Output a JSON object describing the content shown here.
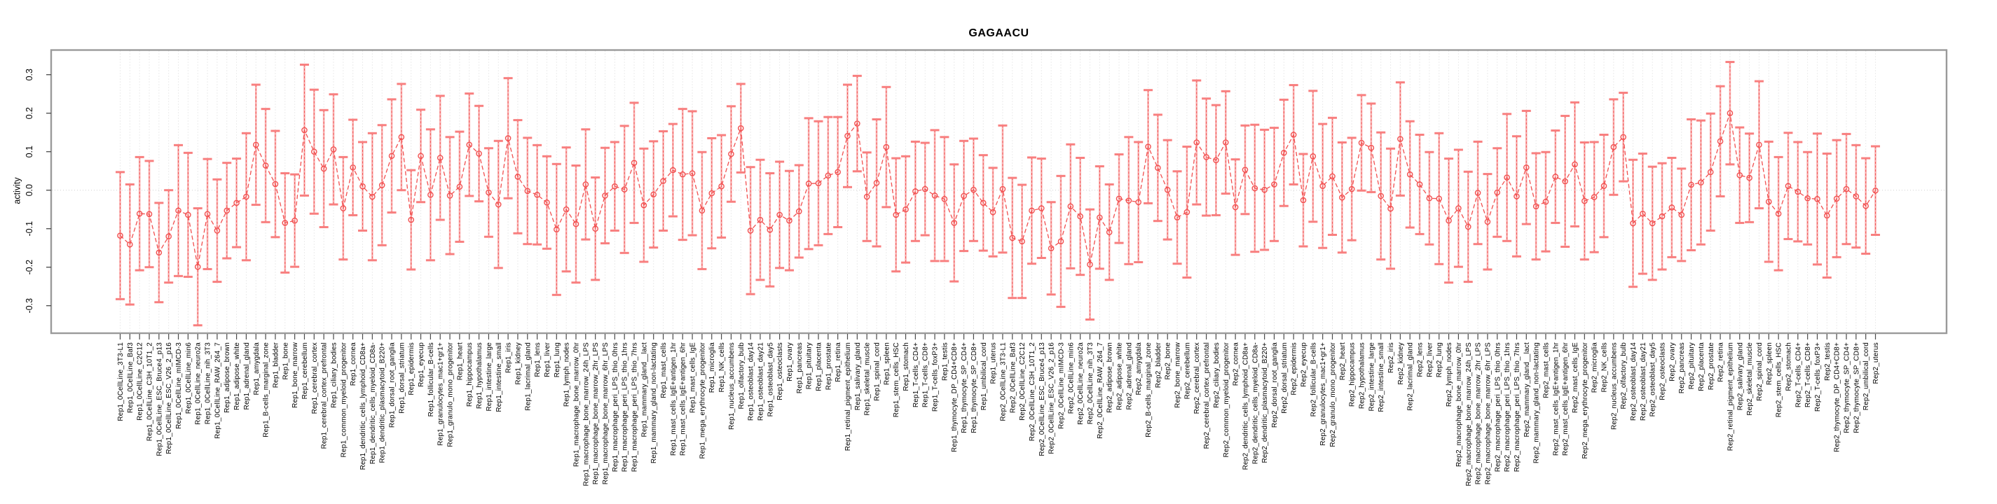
{
  "title": "GAGAACU",
  "y_axis": {
    "label": "activity",
    "tick_labels": [
      "0.3",
      "0.2",
      "0.1",
      "0.0",
      "-0.1",
      "-0.2",
      "-0.3"
    ]
  },
  "colors": {
    "background": "#ffffff",
    "box_border": "#9a9a9a",
    "grid_dotted": "#d8d8d8",
    "zero_line": "#cfcfcf",
    "tick": "#4a4a4a",
    "label_text": "#000000",
    "series_red": "#f25050",
    "error_bar_pink": "#f99a9a",
    "error_cap_pink": "#f87f7f"
  },
  "chart_data": {
    "type": "line",
    "title": "GAGAACU",
    "xlabel": "",
    "ylabel": "activity",
    "ylim": [
      -0.37,
      0.365
    ],
    "y_ticks": [
      0.3,
      0.2,
      0.1,
      0.0,
      -0.1,
      -0.2,
      -0.3
    ],
    "grid": "vertical dotted gridline at every category; dotted horizontal line at y=0",
    "style": "open red circles connected by dashed red line, pink error bars with caps (value ± err)",
    "legend": "none",
    "categories": [
      "Rep1_0CellLine_3T3-L1",
      "Rep1_0CellLine_Baf3",
      "Rep1_0CellLine_C2C12",
      "Rep1_0CellLine_C3H_10T1_2",
      "Rep1_0CellLine_ESC_Bruce4_p13",
      "Rep1_0CellLine_ESC_V26_2_p16",
      "Rep1_0CellLine_mIMCD-3",
      "Rep1_0CellLine_min6",
      "Rep1_0CellLine_neuro2a",
      "Rep1_0CellLine_nih_3T3",
      "Rep1_0CellLine_RAW_264_7",
      "Rep1_adipose_brown",
      "Rep1_adipose_white",
      "Rep1_adrenal_gland",
      "Rep1_amygdala",
      "Rep1_B-cells_marginal_zone",
      "Rep1_bladder",
      "Rep1_bone",
      "Rep1_bone_marrow",
      "Rep1_cerebellum",
      "Rep1_cerebral_cortex",
      "Rep1_cerebral_cortex_prefrontal",
      "Rep1_ciliary_bodies",
      "Rep1_common_myeloid_progenitor",
      "Rep1_cornea",
      "Rep1_dendritic_cells_lymphoid_CD8a+",
      "Rep1_dendritic_cells_myeloid_CD8a-",
      "Rep1_dendritic_plasmacytoid_B220+",
      "Rep1_dorsal_root_ganglia",
      "Rep1_dorsal_striatum",
      "Rep1_epidermis",
      "Rep1_eyecup",
      "Rep1_follicular_B-cells",
      "Rep1_granulocytes_mac1+gr1+",
      "Rep1_granulo_mono_progenitor",
      "Rep1_heart",
      "Rep1_hippocampus",
      "Rep1_hypothalamus",
      "Rep1_intestine_large",
      "Rep1_intestine_small",
      "Rep1_iris",
      "Rep1_kidney",
      "Rep1_lacrimal_gland",
      "Rep1_lens",
      "Rep1_liver",
      "Rep1_lung",
      "Rep1_lymph_nodes",
      "Rep1_macrophage_bone_marrow_0hr",
      "Rep1_macrophage_bone_marrow_24h_LPS",
      "Rep1_macrophage_bone_marrow_2hr_LPS",
      "Rep1_macrophage_bone_marrow_6hr_LPS",
      "Rep1_macrophage_peri_LPS_thio_0hrs",
      "Rep1_macrophage_peri_LPS_thio_1hrs",
      "Rep1_macrophage_peri_LPS_thio_7hrs",
      "Rep1_mammary_gland__lact",
      "Rep1_mammary_gland_non-lactating",
      "Rep1_mast_cells",
      "Rep1_mast_cells_IgE+antigen_1hr",
      "Rep1_mast_cells_IgE+antigen_6hr",
      "Rep1_mast_cells_IgE",
      "Rep1_mega_erythrocyte_progenitor",
      "Rep1_microglia",
      "Rep1_NK_cells",
      "Rep1_nucleus_accumbens",
      "Rep1_olfactory_bulb",
      "Rep1_osteoblast_day14",
      "Rep1_osteoblast_day21",
      "Rep1_osteoblast_day5",
      "Rep1_osteoclasts",
      "Rep1_ovary",
      "Rep1_pancreas",
      "Rep1_pituitary",
      "Rep1_placenta",
      "Rep1_prostate",
      "Rep1_retina",
      "Rep1_retinal_pigment_epithelium",
      "Rep1_salivary_gland",
      "Rep1_skeletal_muscle",
      "Rep1_spinal_cord",
      "Rep1_spleen",
      "Rep1_stem_cells_HSC",
      "Rep1_stomach",
      "Rep1_T-cells_CD4+",
      "Rep1_T-cells_CD8+",
      "Rep1_T-cells_foxP3+",
      "Rep1_testis",
      "Rep1_thymocyte_DP_CD4+CD8+",
      "Rep1_thymocyte_SP_CD4+",
      "Rep1_thymocyte_SP_CD8+",
      "Rep1_umbilical_cord",
      "Rep1_uterus",
      "Rep2_0CellLine_3T3-L1",
      "Rep2_0CellLine_Baf3",
      "Rep2_0CellLine_C2C12",
      "Rep2_0CellLine_C3H_10T1_2",
      "Rep2_0CellLine_ESC_Bruce4_p13",
      "Rep2_0CellLine_ESC_V26_2_p16",
      "Rep2_0CellLine_mIMCD-3",
      "Rep2_0CellLine_min6",
      "Rep2_0CellLine_neuro2a",
      "Rep2_0CellLine_nih_3T3",
      "Rep2_0CellLine_RAW_264_7",
      "Rep2_adipose_brown",
      "Rep2_adipose_white",
      "Rep2_adrenal_gland",
      "Rep2_amygdala",
      "Rep2_B-cells_marginal_zone",
      "Rep2_bladder",
      "Rep2_bone",
      "Rep2_bone_marrow",
      "Rep2_cerebellum",
      "Rep2_cerebral_cortex",
      "Rep2_cerebral_cortex_prefrontal",
      "Rep2_ciliary_bodies",
      "Rep2_common_myeloid_progenitor",
      "Rep2_cornea",
      "Rep2_dendritic_cells_lymphoid_CD8a+",
      "Rep2_dendritic_cells_myeloid_CD8a-",
      "Rep2_dendritic_plasmacytoid_B220+",
      "Rep2_dorsal_root_ganglia",
      "Rep2_dorsal_striatum",
      "Rep2_epidermis",
      "Rep2_eyecup",
      "Rep2_follicular_B-cells",
      "Rep2_granulocytes_mac1+gr1+",
      "Rep2_granulo_mono_progenitor",
      "Rep2_heart",
      "Rep2_hippocampus",
      "Rep2_hypothalamus",
      "Rep2_intestine_large",
      "Rep2_intestine_small",
      "Rep2_iris",
      "Rep2_kidney",
      "Rep2_lacrimal_gland",
      "Rep2_lens",
      "Rep2_liver",
      "Rep2_lung",
      "Rep2_lymph_nodes",
      "Rep2_macrophage_bone_marrow_0hr",
      "Rep2_macrophage_bone_marrow_24h_LPS",
      "Rep2_macrophage_bone_marrow_2hr_LPS",
      "Rep2_macrophage_bone_marrow_6hr_LPS",
      "Rep2_macrophage_peri_LPS_thio_0hrs",
      "Rep2_macrophage_peri_LPS_thio_1hrs",
      "Rep2_macrophage_peri_LPS_thio_7hrs",
      "Rep2_mammary_gland__lact",
      "Rep2_mammary_gland_non-lactating",
      "Rep2_mast_cells",
      "Rep2_mast_cells_IgE+antigen_1hr",
      "Rep2_mast_cells_IgE+antigen_6hr",
      "Rep2_mast_cells_IgE",
      "Rep2_mega_erythrocyte_progenitor",
      "Rep2_microglia",
      "Rep2_NK_cells",
      "Rep2_nucleus_accumbens",
      "Rep2_olfactory_bulb",
      "Rep2_osteoblast_day14",
      "Rep2_osteoblast_day21",
      "Rep2_osteoblast_day5",
      "Rep2_osteoclasts",
      "Rep2_ovary",
      "Rep2_pancreas",
      "Rep2_pituitary",
      "Rep2_placenta",
      "Rep2_prostate",
      "Rep2_retina",
      "Rep2_retinal_pigment_epithelium",
      "Rep2_salivary_gland",
      "Rep2_skeletal_muscle",
      "Rep2_spinal_cord",
      "Rep2_spleen",
      "Rep2_stem_cells_HSC",
      "Rep2_stomach",
      "Rep2_T-cells_CD4+",
      "Rep2_T-cells_CD8+",
      "Rep2_T-cells_foxP3+",
      "Rep2_testis",
      "Rep2_thymocyte_DP_CD4+CD8+",
      "Rep2_thymocyte_SP_CD4+",
      "Rep2_thymocyte_SP_CD8+",
      "Rep2_umbilical_cord",
      "Rep2_uterus"
    ],
    "values": [
      -0.118,
      -0.141,
      -0.061,
      -0.062,
      -0.162,
      -0.12,
      -0.053,
      -0.064,
      -0.199,
      -0.062,
      -0.105,
      -0.053,
      -0.033,
      -0.017,
      0.118,
      0.064,
      0.016,
      -0.085,
      -0.079,
      0.156,
      0.1,
      0.056,
      0.106,
      -0.047,
      0.059,
      0.01,
      -0.017,
      0.013,
      0.089,
      0.138,
      -0.077,
      0.089,
      -0.012,
      0.084,
      -0.014,
      0.009,
      0.118,
      0.095,
      -0.006,
      -0.037,
      0.135,
      0.035,
      -0.002,
      -0.012,
      -0.032,
      -0.102,
      -0.05,
      -0.088,
      0.015,
      -0.1,
      -0.014,
      0.01,
      0.002,
      0.071,
      -0.039,
      -0.011,
      0.024,
      0.052,
      0.041,
      0.044,
      -0.053,
      -0.008,
      0.01,
      0.094,
      0.161,
      -0.105,
      -0.077,
      -0.103,
      -0.064,
      -0.079,
      -0.055,
      0.017,
      0.018,
      0.038,
      0.047,
      0.141,
      0.173,
      -0.017,
      0.019,
      0.112,
      -0.064,
      -0.05,
      -0.003,
      0.003,
      -0.014,
      -0.023,
      -0.085,
      -0.015,
      0.001,
      -0.033,
      -0.057,
      0.003,
      -0.124,
      -0.133,
      -0.053,
      -0.047,
      -0.151,
      -0.133,
      -0.042,
      -0.068,
      -0.193,
      -0.071,
      -0.109,
      -0.022,
      -0.027,
      -0.031,
      0.113,
      0.058,
      0.001,
      -0.071,
      -0.057,
      0.124,
      0.086,
      0.078,
      0.124,
      -0.044,
      0.053,
      0.005,
      0.001,
      0.015,
      0.097,
      0.144,
      -0.026,
      0.088,
      0.011,
      0.036,
      -0.019,
      0.003,
      0.123,
      0.11,
      -0.015,
      -0.048,
      0.133,
      0.041,
      0.015,
      -0.021,
      -0.022,
      -0.079,
      -0.047,
      -0.095,
      -0.007,
      -0.082,
      -0.006,
      0.033,
      -0.016,
      0.059,
      -0.042,
      -0.03,
      0.035,
      0.023,
      0.067,
      -0.028,
      -0.018,
      0.011,
      0.112,
      0.138,
      -0.086,
      -0.061,
      -0.086,
      -0.068,
      -0.045,
      -0.064,
      0.014,
      0.02,
      0.047,
      0.127,
      0.2,
      0.039,
      0.032,
      0.118,
      -0.03,
      -0.061,
      0.011,
      -0.004,
      -0.021,
      -0.023,
      -0.066,
      -0.022,
      0.003,
      -0.016,
      -0.041,
      -0.001
    ],
    "err": [
      0.165,
      0.156,
      0.147,
      0.138,
      0.129,
      0.12,
      0.17,
      0.161,
      0.152,
      0.143,
      0.133,
      0.124,
      0.115,
      0.165,
      0.156,
      0.147,
      0.138,
      0.129,
      0.12,
      0.17,
      0.161,
      0.152,
      0.143,
      0.133,
      0.124,
      0.115,
      0.165,
      0.156,
      0.147,
      0.138,
      0.129,
      0.12,
      0.17,
      0.161,
      0.152,
      0.143,
      0.133,
      0.124,
      0.115,
      0.165,
      0.156,
      0.147,
      0.138,
      0.129,
      0.12,
      0.17,
      0.161,
      0.152,
      0.143,
      0.133,
      0.124,
      0.115,
      0.165,
      0.156,
      0.147,
      0.138,
      0.129,
      0.12,
      0.17,
      0.161,
      0.152,
      0.143,
      0.133,
      0.124,
      0.115,
      0.165,
      0.156,
      0.147,
      0.138,
      0.129,
      0.12,
      0.17,
      0.161,
      0.152,
      0.143,
      0.133,
      0.124,
      0.115,
      0.165,
      0.156,
      0.147,
      0.138,
      0.129,
      0.12,
      0.17,
      0.161,
      0.152,
      0.143,
      0.133,
      0.124,
      0.115,
      0.165,
      0.156,
      0.147,
      0.138,
      0.129,
      0.12,
      0.17,
      0.161,
      0.152,
      0.143,
      0.133,
      0.124,
      0.115,
      0.165,
      0.156,
      0.147,
      0.138,
      0.129,
      0.12,
      0.17,
      0.161,
      0.152,
      0.143,
      0.133,
      0.124,
      0.115,
      0.165,
      0.156,
      0.147,
      0.138,
      0.129,
      0.12,
      0.17,
      0.161,
      0.152,
      0.143,
      0.133,
      0.124,
      0.115,
      0.165,
      0.156,
      0.147,
      0.138,
      0.129,
      0.12,
      0.17,
      0.161,
      0.152,
      0.143,
      0.133,
      0.124,
      0.115,
      0.165,
      0.156,
      0.147,
      0.138,
      0.129,
      0.12,
      0.17,
      0.161,
      0.152,
      0.143,
      0.133,
      0.124,
      0.115,
      0.165,
      0.156,
      0.147,
      0.138,
      0.129,
      0.12,
      0.17,
      0.161,
      0.152,
      0.143,
      0.133,
      0.124,
      0.115,
      0.165,
      0.156,
      0.147,
      0.138,
      0.129,
      0.12,
      0.17,
      0.161,
      0.152,
      0.143,
      0.133,
      0.124,
      0.115
    ]
  }
}
